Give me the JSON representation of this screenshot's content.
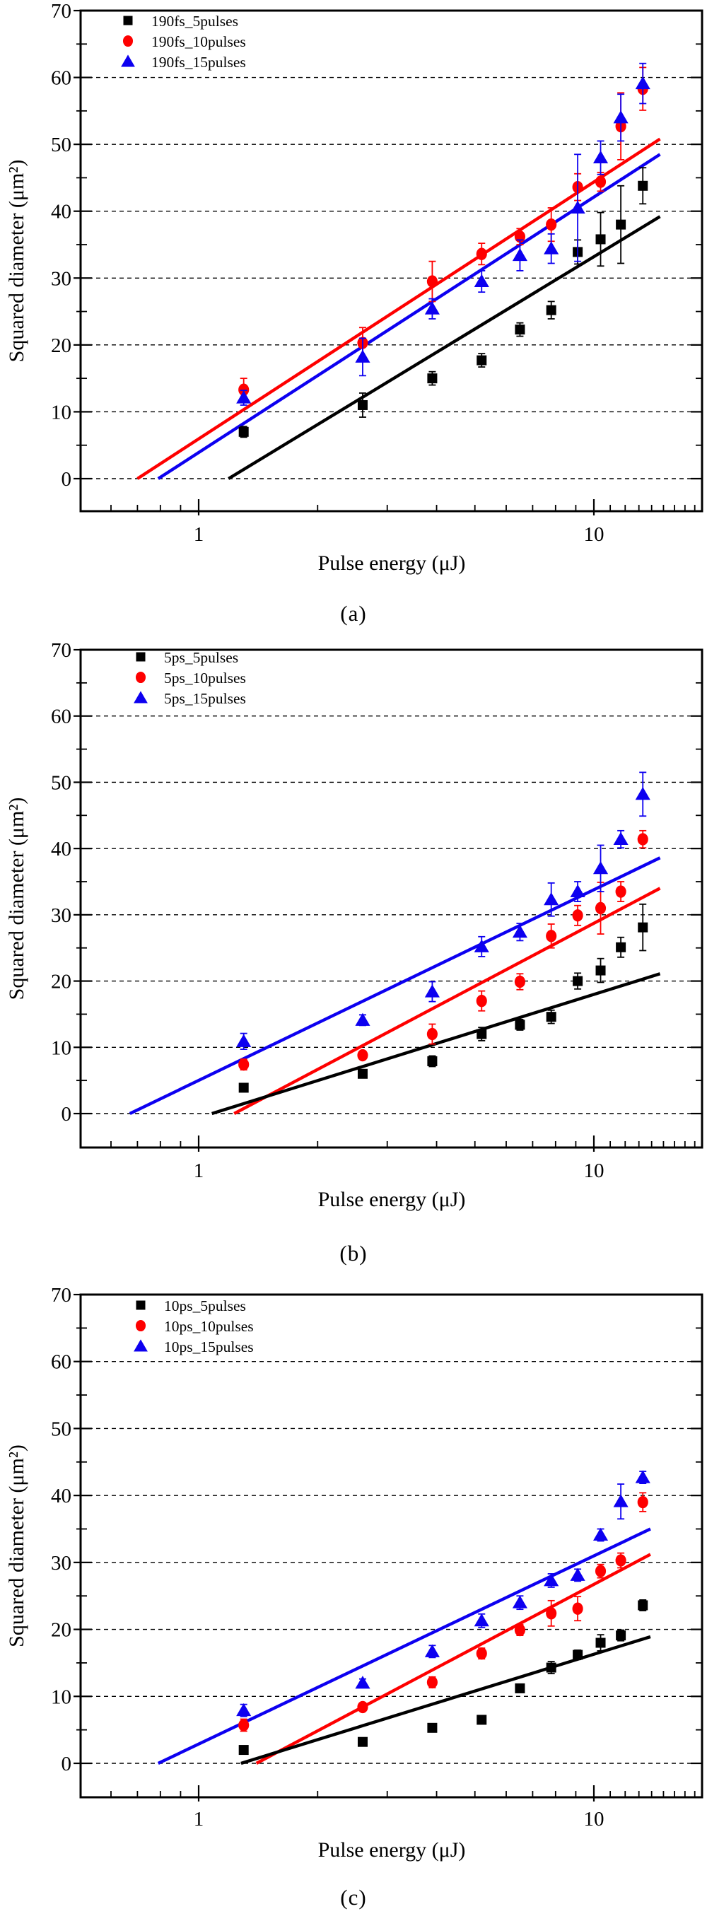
{
  "figure_title": "",
  "axes": {
    "xlabel": "Pulse energy (μJ)",
    "ylabel": "Squared diameter (μm²)",
    "x_scale": "log",
    "xlim": [
      0.5,
      18.8
    ],
    "ylim": [
      -5,
      70
    ],
    "x_major_ticks": [
      1,
      10
    ],
    "x_minor_ticks": [
      0.6,
      0.7,
      0.8,
      0.9,
      2,
      3,
      4,
      5,
      6,
      7,
      8,
      9,
      11,
      12,
      13,
      14,
      15,
      16,
      17,
      18
    ],
    "y_major_ticks": [
      0,
      10,
      20,
      30,
      40,
      50,
      60,
      70
    ],
    "y_minor_step": 5,
    "grid": "horizontal-dashed",
    "legend_position": "top-left"
  },
  "colors": {
    "black_series": "#000000",
    "red_series": "#fe0000",
    "blue_series": "#0d00f0"
  },
  "chart_data": [
    {
      "type": "scatter",
      "caption": "(a)",
      "x_scale": "log",
      "xlabel": "Pulse energy (μJ)",
      "ylabel": "Squared diameter (μm²)",
      "x": [
        1.3,
        2.6,
        3.9,
        5.2,
        6.5,
        7.8,
        9.1,
        10.4,
        11.7,
        13.3
      ],
      "series": [
        {
          "name": "190fs_5pulses",
          "marker": "square",
          "color": "#000000",
          "values": [
            7.0,
            11.0,
            15.0,
            17.7,
            22.3,
            25.2,
            33.9,
            35.8,
            38.0,
            43.8
          ],
          "errors": [
            0.8,
            1.8,
            1.0,
            1.0,
            1.0,
            1.3,
            1.8,
            4.0,
            5.8,
            2.7
          ]
        },
        {
          "name": "190fs_10pulses",
          "marker": "circle",
          "color": "#fe0000",
          "values": [
            13.3,
            20.3,
            29.5,
            33.6,
            36.2,
            38.0,
            43.6,
            44.4,
            52.7,
            58.3
          ],
          "errors": [
            1.7,
            2.3,
            3.0,
            1.6,
            1.2,
            2.5,
            2.0,
            1.4,
            5.0,
            3.2
          ]
        },
        {
          "name": "190fs_15pulses",
          "marker": "triangle",
          "color": "#0d00f0",
          "values": [
            12.1,
            18.2,
            25.4,
            29.5,
            33.4,
            34.4,
            40.5,
            48.0,
            54.0,
            59.1
          ],
          "errors": [
            1.1,
            2.8,
            1.5,
            1.6,
            2.3,
            2.2,
            8.0,
            2.5,
            3.5,
            3.0
          ]
        }
      ],
      "fit_lines": [
        {
          "color": "#fe0000",
          "x_start": 0.7,
          "y_start": 0,
          "x_end": 14.7,
          "y_end": 50.8
        },
        {
          "color": "#0d00f0",
          "x_start": 0.79,
          "y_start": 0,
          "x_end": 14.7,
          "y_end": 48.5
        },
        {
          "color": "#000000",
          "x_start": 1.19,
          "y_start": 0,
          "x_end": 14.7,
          "y_end": 39.2
        }
      ]
    },
    {
      "type": "scatter",
      "caption": "(b)",
      "x_scale": "log",
      "xlabel": "Pulse energy (μJ)",
      "ylabel": "Squared diameter (μm²)",
      "x": [
        1.3,
        2.6,
        3.9,
        5.2,
        6.5,
        7.8,
        9.1,
        10.4,
        11.7,
        13.3
      ],
      "series": [
        {
          "name": "5ps_5pulses",
          "marker": "square",
          "color": "#000000",
          "values": [
            3.9,
            6.0,
            7.9,
            12.0,
            13.4,
            14.6,
            20.0,
            21.6,
            25.1,
            28.1
          ],
          "errors": [
            0.5,
            0.5,
            0.8,
            1.0,
            0.8,
            1.0,
            1.2,
            1.8,
            1.5,
            3.5
          ]
        },
        {
          "name": "5ps_10pulses",
          "marker": "circle",
          "color": "#fe0000",
          "values": [
            7.4,
            8.8,
            12.0,
            17.0,
            19.9,
            26.8,
            29.9,
            31.0,
            33.5,
            41.4
          ],
          "errors": [
            0.8,
            0.6,
            1.5,
            1.5,
            1.2,
            1.8,
            1.5,
            3.9,
            1.5,
            1.3
          ]
        },
        {
          "name": "5ps_15pulses",
          "marker": "triangle",
          "color": "#0d00f0",
          "values": [
            10.9,
            14.1,
            18.4,
            25.2,
            27.4,
            32.3,
            33.5,
            37.0,
            41.4,
            48.2
          ],
          "errors": [
            1.2,
            0.8,
            1.5,
            1.5,
            1.3,
            2.5,
            1.5,
            3.5,
            1.3,
            3.3
          ]
        }
      ],
      "fit_lines": [
        {
          "color": "#fe0000",
          "x_start": 1.23,
          "y_start": 0,
          "x_end": 14.7,
          "y_end": 34.0
        },
        {
          "color": "#0d00f0",
          "x_start": 0.67,
          "y_start": 0,
          "x_end": 14.7,
          "y_end": 38.6
        },
        {
          "color": "#000000",
          "x_start": 1.08,
          "y_start": 0,
          "x_end": 14.7,
          "y_end": 21.1
        }
      ]
    },
    {
      "type": "scatter",
      "caption": "(c)",
      "x_scale": "log",
      "xlabel": "Pulse energy (μJ)",
      "ylabel": "Squared diameter (μm²)",
      "x": [
        1.3,
        2.6,
        3.9,
        5.2,
        6.5,
        7.8,
        9.1,
        10.4,
        11.7,
        13.3
      ],
      "series": [
        {
          "name": "10ps_5pulses",
          "marker": "square",
          "color": "#000000",
          "values": [
            2.0,
            3.2,
            5.3,
            6.5,
            11.2,
            14.3,
            16.2,
            18.0,
            19.1,
            23.6
          ],
          "errors": [
            0.4,
            0.4,
            0.5,
            0.5,
            0.6,
            0.9,
            0.7,
            1.2,
            0.8,
            0.8
          ]
        },
        {
          "name": "10ps_10pulses",
          "marker": "circle",
          "color": "#fe0000",
          "values": [
            5.7,
            8.4,
            12.1,
            16.4,
            19.9,
            22.4,
            23.1,
            28.7,
            30.3,
            39.0
          ],
          "errors": [
            0.9,
            0.6,
            0.8,
            0.8,
            0.8,
            1.9,
            1.8,
            1.0,
            1.1,
            1.4
          ]
        },
        {
          "name": "10ps_15pulses",
          "marker": "triangle",
          "color": "#0d00f0",
          "values": [
            7.9,
            12.0,
            16.7,
            21.3,
            24.0,
            27.3,
            28.1,
            34.1,
            39.1,
            42.7
          ],
          "errors": [
            0.9,
            0.6,
            0.9,
            1.0,
            1.0,
            1.0,
            0.9,
            0.9,
            2.6,
            0.9
          ]
        }
      ],
      "fit_lines": [
        {
          "color": "#fe0000",
          "x_start": 1.4,
          "y_start": 0,
          "x_end": 13.9,
          "y_end": 31.2
        },
        {
          "color": "#0d00f0",
          "x_start": 0.79,
          "y_start": 0,
          "x_end": 13.9,
          "y_end": 35.0
        },
        {
          "color": "#000000",
          "x_start": 1.28,
          "y_start": 0,
          "x_end": 13.9,
          "y_end": 18.9
        }
      ]
    }
  ]
}
